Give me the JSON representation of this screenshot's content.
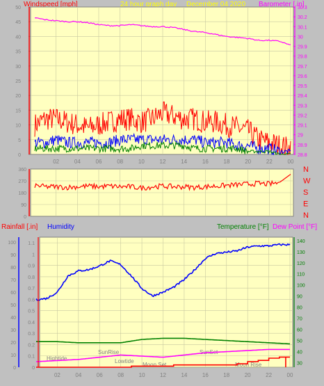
{
  "header": {
    "left_label": "Windspeed [mph]",
    "center_label": "24 hour graph day",
    "date": "December 04 2020",
    "right_label": "Barometer [.in]"
  },
  "colors": {
    "background": "#c0c0c0",
    "plot_bg": "#ffffc0",
    "grid": "#c8c8a0",
    "wind_gust": "#ff0000",
    "wind_avg": "#0000ff",
    "wind_low": "#008000",
    "barometer": "#ff00ff",
    "direction": "#ff0000",
    "humidity": "#0000ff",
    "temperature": "#008000",
    "dewpoint": "#ff00ff",
    "rain": "#ff0000",
    "axis_text": "#808080"
  },
  "chart_data": [
    {
      "type": "line",
      "name": "wind-barometer",
      "x_ticks": [
        "02",
        "04",
        "06",
        "08",
        "10",
        "12",
        "14",
        "16",
        "18",
        "20",
        "22",
        "00"
      ],
      "left_axis": {
        "label": "Windspeed [mph]",
        "ticks": [
          0,
          5,
          10,
          15,
          20,
          25,
          30,
          35,
          40,
          45,
          50
        ],
        "ylim": [
          0,
          50
        ]
      },
      "right_axis": {
        "label": "Barometer [.in]",
        "ticks": [
          28.8,
          28.9,
          29.0,
          29.1,
          29.2,
          29.3,
          29.4,
          29.5,
          29.6,
          29.7,
          29.8,
          29.9,
          30.0,
          30.1,
          30.2,
          30.3
        ],
        "ylim": [
          28.8,
          30.3
        ]
      },
      "series": [
        {
          "name": "Barometer",
          "axis": "right",
          "x": [
            0,
            1,
            2,
            3,
            4,
            5,
            6,
            7,
            8,
            9,
            10,
            11,
            12,
            13,
            14,
            15,
            16,
            17,
            18,
            19,
            20,
            21,
            22,
            23,
            24
          ],
          "values": [
            30.19,
            30.17,
            30.16,
            30.15,
            30.15,
            30.14,
            30.12,
            30.11,
            30.11,
            30.12,
            30.11,
            30.1,
            30.1,
            30.09,
            30.07,
            30.05,
            30.04,
            30.02,
            30.0,
            29.99,
            29.98,
            29.96,
            29.96,
            29.95,
            29.91
          ]
        },
        {
          "name": "Gust",
          "axis": "left",
          "x": [
            0,
            1,
            2,
            3,
            4,
            5,
            6,
            7,
            8,
            9,
            10,
            11,
            12,
            13,
            14,
            15,
            16,
            17,
            18,
            19,
            20,
            21,
            22,
            23,
            24
          ],
          "values": [
            10,
            12,
            12,
            11,
            10,
            9,
            10,
            11,
            12,
            12,
            11,
            12,
            14,
            13,
            12,
            12,
            11,
            11,
            10,
            9,
            8,
            5,
            4,
            3,
            2
          ]
        },
        {
          "name": "Average",
          "axis": "left",
          "x": [
            0,
            1,
            2,
            3,
            4,
            5,
            6,
            7,
            8,
            9,
            10,
            11,
            12,
            13,
            14,
            15,
            16,
            17,
            18,
            19,
            20,
            21,
            22,
            23,
            24
          ],
          "values": [
            4,
            4,
            5,
            4,
            4,
            4,
            4,
            4,
            5,
            5,
            5,
            5,
            5,
            5,
            5,
            5,
            4,
            4,
            4,
            3,
            3,
            2,
            2,
            1,
            1
          ]
        },
        {
          "name": "Low",
          "axis": "left",
          "x": [
            0,
            1,
            2,
            3,
            4,
            5,
            6,
            7,
            8,
            9,
            10,
            11,
            12,
            13,
            14,
            15,
            16,
            17,
            18,
            19,
            20,
            21,
            22,
            23,
            24
          ],
          "values": [
            2,
            2,
            2,
            2,
            2,
            2,
            2,
            2,
            2,
            2,
            3,
            3,
            3,
            3,
            3,
            2,
            2,
            2,
            2,
            2,
            1,
            1,
            1,
            0,
            0
          ]
        }
      ]
    },
    {
      "type": "line",
      "name": "wind-direction",
      "x_ticks": [
        "02",
        "04",
        "06",
        "08",
        "10",
        "12",
        "14",
        "16",
        "18",
        "20",
        "22",
        "00"
      ],
      "left_axis": {
        "ticks": [
          0,
          90,
          180,
          270,
          360
        ],
        "ylim": [
          0,
          360
        ]
      },
      "compass_labels": [
        "N",
        "W",
        "S",
        "E",
        "N"
      ],
      "series": [
        {
          "name": "Direction",
          "x": [
            0,
            1,
            2,
            3,
            4,
            5,
            6,
            7,
            8,
            9,
            10,
            11,
            12,
            13,
            14,
            15,
            16,
            17,
            18,
            19,
            20,
            21,
            22,
            23,
            24
          ],
          "values": [
            235,
            225,
            225,
            220,
            225,
            230,
            225,
            230,
            225,
            225,
            215,
            225,
            230,
            225,
            225,
            220,
            225,
            230,
            235,
            240,
            245,
            250,
            245,
            260,
            320
          ]
        }
      ]
    },
    {
      "type": "line",
      "name": "humidity-temperature",
      "x_ticks": [
        "02",
        "04",
        "06",
        "08",
        "10",
        "12",
        "14",
        "16",
        "18",
        "20",
        "22",
        "00"
      ],
      "labels": {
        "rain": "Rainfall [.in]",
        "humidity": "Humidity",
        "temperature": "Temperature [°F]",
        "dewpoint": "Dew Point [°F]"
      },
      "rain_axis": {
        "ticks": [
          0,
          0.1,
          0.2,
          0.3,
          0.4,
          0.5,
          0.6,
          0.7,
          0.8,
          0.9,
          1,
          1.1
        ],
        "ylim": [
          0,
          1.15
        ]
      },
      "humidity_axis": {
        "ticks": [
          0,
          10,
          20,
          30,
          40,
          50,
          60,
          70,
          80,
          90,
          100
        ],
        "ylim": [
          0,
          104
        ]
      },
      "temperature_axis": {
        "ticks": [
          30,
          40,
          50,
          60,
          70,
          80,
          90,
          100,
          110,
          120,
          130,
          140
        ],
        "ylim": [
          26,
          143
        ]
      },
      "annotations": [
        "Hightide",
        "SunRise",
        "Lowtide",
        "Moon Set",
        "SunSet",
        "Moon Rise"
      ],
      "series": [
        {
          "name": "Humidity",
          "axis": "humidity",
          "x": [
            0,
            1,
            2,
            3,
            4,
            5,
            6,
            7,
            8,
            9,
            10,
            11,
            12,
            13,
            14,
            15,
            16,
            17,
            18,
            19,
            20,
            21,
            22,
            23,
            24
          ],
          "values": [
            54,
            55,
            60,
            73,
            77,
            78,
            81,
            85,
            82,
            73,
            63,
            57,
            60,
            64,
            70,
            78,
            87,
            91,
            92,
            93,
            96,
            97,
            97,
            98,
            98
          ]
        },
        {
          "name": "Temperature",
          "axis": "temperature",
          "x": [
            0,
            2,
            4,
            6,
            8,
            10,
            12,
            14,
            16,
            18,
            20,
            22,
            24
          ],
          "values": [
            49,
            49,
            48,
            48,
            48,
            51,
            52,
            52,
            51,
            50,
            49,
            48,
            47
          ]
        },
        {
          "name": "Dew Point",
          "axis": "temperature",
          "x": [
            0,
            2,
            4,
            6,
            8,
            10,
            12,
            14,
            16,
            18,
            20,
            22,
            24
          ],
          "values": [
            31,
            32,
            33,
            35,
            37,
            36,
            35,
            37,
            39,
            40,
            41,
            42,
            42
          ]
        },
        {
          "name": "Rainfall",
          "axis": "rain",
          "x": [
            0,
            6,
            9,
            13,
            16,
            18,
            19,
            20,
            21,
            22,
            23,
            23.5,
            24
          ],
          "values": [
            0,
            0,
            0.01,
            0.02,
            0.02,
            0.02,
            0.03,
            0.05,
            0.06,
            0.08,
            0.09,
            0.09,
            0.09
          ]
        }
      ]
    }
  ]
}
